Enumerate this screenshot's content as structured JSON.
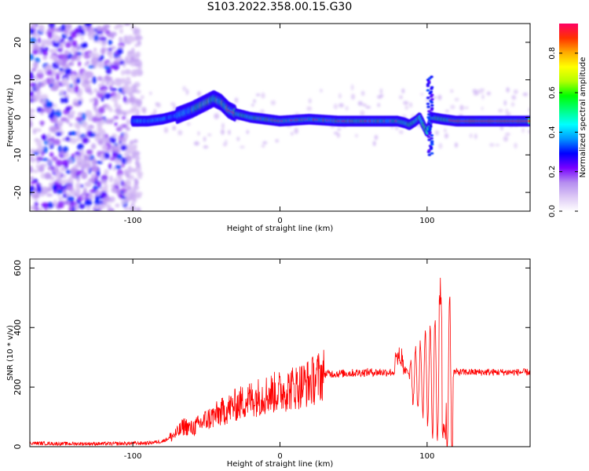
{
  "title": "S103.2022.358.00.15.G30",
  "chart_data": [
    {
      "type": "heatmap",
      "xlabel": "Height of straight line (km)",
      "ylabel": "Frequency (Hz)",
      "xlim": [
        -170,
        170
      ],
      "ylim": [
        -25,
        25
      ],
      "xticks": [
        -100,
        0,
        100
      ],
      "yticks": [
        -20,
        -10,
        0,
        10,
        20
      ],
      "colorbar": {
        "label": "Normalized spectral amplitude",
        "range": [
          0,
          0.95
        ],
        "ticks": [
          0.0,
          0.2,
          0.4,
          0.6,
          0.8
        ],
        "colors": [
          "#ffffff",
          "#dcc8f5",
          "#b48cf0",
          "#7800ff",
          "#0000ff",
          "#0096ff",
          "#00ffff",
          "#00ff80",
          "#00ff00",
          "#b4ff00",
          "#ffff00",
          "#ffaa00",
          "#ff3200",
          "#ff0064"
        ]
      },
      "ridge": {
        "x": [
          -100,
          -90,
          -80,
          -70,
          -60,
          -50,
          -45,
          -40,
          -35,
          -30,
          -20,
          -10,
          0,
          20,
          40,
          60,
          80,
          85,
          88,
          92,
          95,
          100,
          103,
          110,
          120,
          150,
          170
        ],
        "y": [
          -1,
          -1,
          -0.5,
          0.5,
          2,
          4,
          5,
          4,
          2,
          1,
          0,
          -0.5,
          -1,
          -0.5,
          -1,
          -1,
          -1,
          -1.5,
          -2,
          -1,
          0,
          -4,
          0,
          -0.5,
          -1,
          -1,
          -1
        ]
      },
      "strongest_band_x": [
        [
          -35,
          -30
        ],
        [
          115,
          170
        ]
      ],
      "spike_region": {
        "x": 102,
        "y_range": [
          -10,
          11
        ]
      }
    },
    {
      "type": "line",
      "xlabel": "Height of straight line (km)",
      "ylabel": "SNR (10 * v/v)",
      "xlim": [
        -170,
        170
      ],
      "ylim": [
        0,
        630
      ],
      "xticks": [
        -100,
        0,
        100
      ],
      "yticks": [
        0,
        200,
        400,
        600
      ],
      "series": [
        {
          "color": "#ff0000",
          "x": [
            -170,
            -150,
            -130,
            -110,
            -90,
            -80,
            -75,
            -70,
            -65,
            -60,
            -50,
            -40,
            -30,
            -20,
            -10,
            0,
            10,
            20,
            25,
            28,
            30,
            40,
            60,
            80,
            85,
            90,
            95,
            100,
            105,
            110,
            113,
            115,
            120,
            140,
            170
          ],
          "y": [
            12,
            10,
            10,
            10,
            12,
            18,
            30,
            45,
            70,
            60,
            90,
            115,
            140,
            160,
            175,
            185,
            200,
            215,
            230,
            240,
            245,
            245,
            250,
            250,
            255,
            240,
            230,
            220,
            230,
            200,
            160,
            250,
            250,
            250,
            250
          ]
        }
      ]
    }
  ]
}
